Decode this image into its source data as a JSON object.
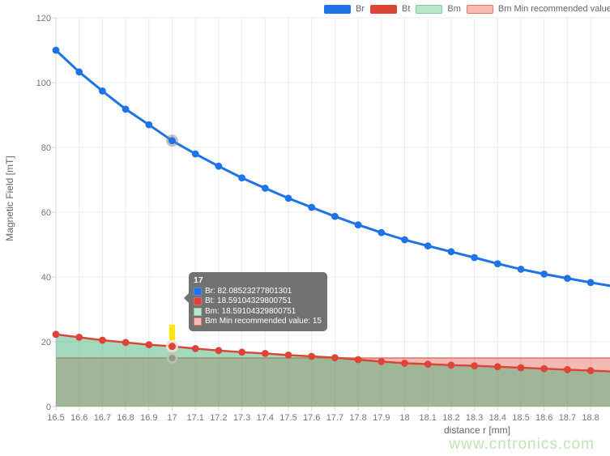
{
  "legend": {
    "items": [
      {
        "label": "Br",
        "fill": "#1e73e8",
        "border": "#1e73e8"
      },
      {
        "label": "Bt",
        "fill": "#dc4437",
        "border": "#dc4437"
      },
      {
        "label": "Bm",
        "fill": "#bce5c9",
        "border": "#84cb9c"
      },
      {
        "label": "Bm Min recommended value",
        "fill": "#f4bab4",
        "border": "#e57368"
      }
    ]
  },
  "axes": {
    "y_title": "Magnetic Field [mT]",
    "x_title": "distance r [mm]",
    "y_ticks": [
      0,
      20,
      40,
      60,
      80,
      100,
      120
    ],
    "x_ticks": [
      "16.5",
      "16.6",
      "16.7",
      "16.8",
      "16.9",
      "17",
      "17.1",
      "17.2",
      "17.3",
      "17.4",
      "17.5",
      "17.6",
      "17.7",
      "17.8",
      "17.9",
      "18",
      "18.1",
      "18.2",
      "18.3",
      "18.4",
      "18.5",
      "18.6",
      "18.7",
      "18.8"
    ]
  },
  "tooltip": {
    "title": "17",
    "rows": [
      {
        "text": "Br: 82.08523277801301",
        "swatch": "#1e73e8",
        "swatch_border": "#4a8cec"
      },
      {
        "text": "Bt: 18.59104329800751",
        "swatch": "#dc4437",
        "swatch_border": "#e4695f"
      },
      {
        "text": "Bm: 18.59104329800751",
        "swatch": "#bce5c9",
        "swatch_border": "#84cb9c"
      },
      {
        "text": "Bm Min recommended value: 15",
        "swatch": "#f4bab4",
        "swatch_border": "#e57368"
      }
    ]
  },
  "watermark": {
    "text": "www.cntronics.com",
    "color": "#c0e3b6"
  },
  "hover": {
    "x_value": 17,
    "x_index": 5,
    "marker_color": "#ffe60a"
  },
  "chart_data": {
    "type": "line",
    "title": "",
    "xlabel": "distance r [mm]",
    "ylabel": "Magnetic Field [mT]",
    "xlim": [
      16.5,
      18.9
    ],
    "ylim": [
      0,
      120
    ],
    "grid": true,
    "legend_position": "top-right",
    "x": [
      16.5,
      16.6,
      16.7,
      16.8,
      16.9,
      17,
      17.1,
      17.2,
      17.3,
      17.4,
      17.5,
      17.6,
      17.7,
      17.8,
      17.9,
      18,
      18.1,
      18.2,
      18.3,
      18.4,
      18.5,
      18.6,
      18.7,
      18.8,
      18.9
    ],
    "series": [
      {
        "name": "Br",
        "color": "#1e73e8",
        "values": [
          110,
          103.3,
          97.4,
          91.8,
          87,
          82.08523277801301,
          78,
          74.2,
          70.6,
          67.4,
          64.3,
          61.5,
          58.7,
          56.1,
          53.7,
          51.5,
          49.6,
          47.8,
          46,
          44.1,
          42.4,
          40.9,
          39.6,
          38.3,
          37.1
        ]
      },
      {
        "name": "Bt",
        "color": "#dc4437",
        "values": [
          22.3,
          21.4,
          20.5,
          19.8,
          19.1,
          18.59104329800751,
          17.9,
          17.3,
          16.8,
          16.4,
          15.9,
          15.5,
          15.1,
          14.5,
          13.9,
          13.4,
          13.1,
          12.8,
          12.6,
          12.3,
          12,
          11.7,
          11.4,
          11.1,
          10.8
        ]
      },
      {
        "name": "Bm",
        "area": true,
        "fill_color": "rgba(75,179,125,0.5)",
        "line_color": "rgba(90,185,130,0.85)",
        "values": [
          22.3,
          21.4,
          20.5,
          19.8,
          19.1,
          18.59104329800751,
          17.9,
          17.3,
          16.8,
          16.4,
          15.9,
          15.5,
          15.1,
          14.5,
          13.9,
          13.4,
          13.1,
          12.8,
          12.6,
          12.3,
          12,
          11.7,
          11.4,
          11.1,
          10.8
        ]
      },
      {
        "name": "Bm Min recommended value",
        "area": true,
        "fill_color": "rgba(225,80,70,0.4)",
        "line_color": "rgba(225,96,85,0.75)",
        "constant": 15
      }
    ]
  }
}
